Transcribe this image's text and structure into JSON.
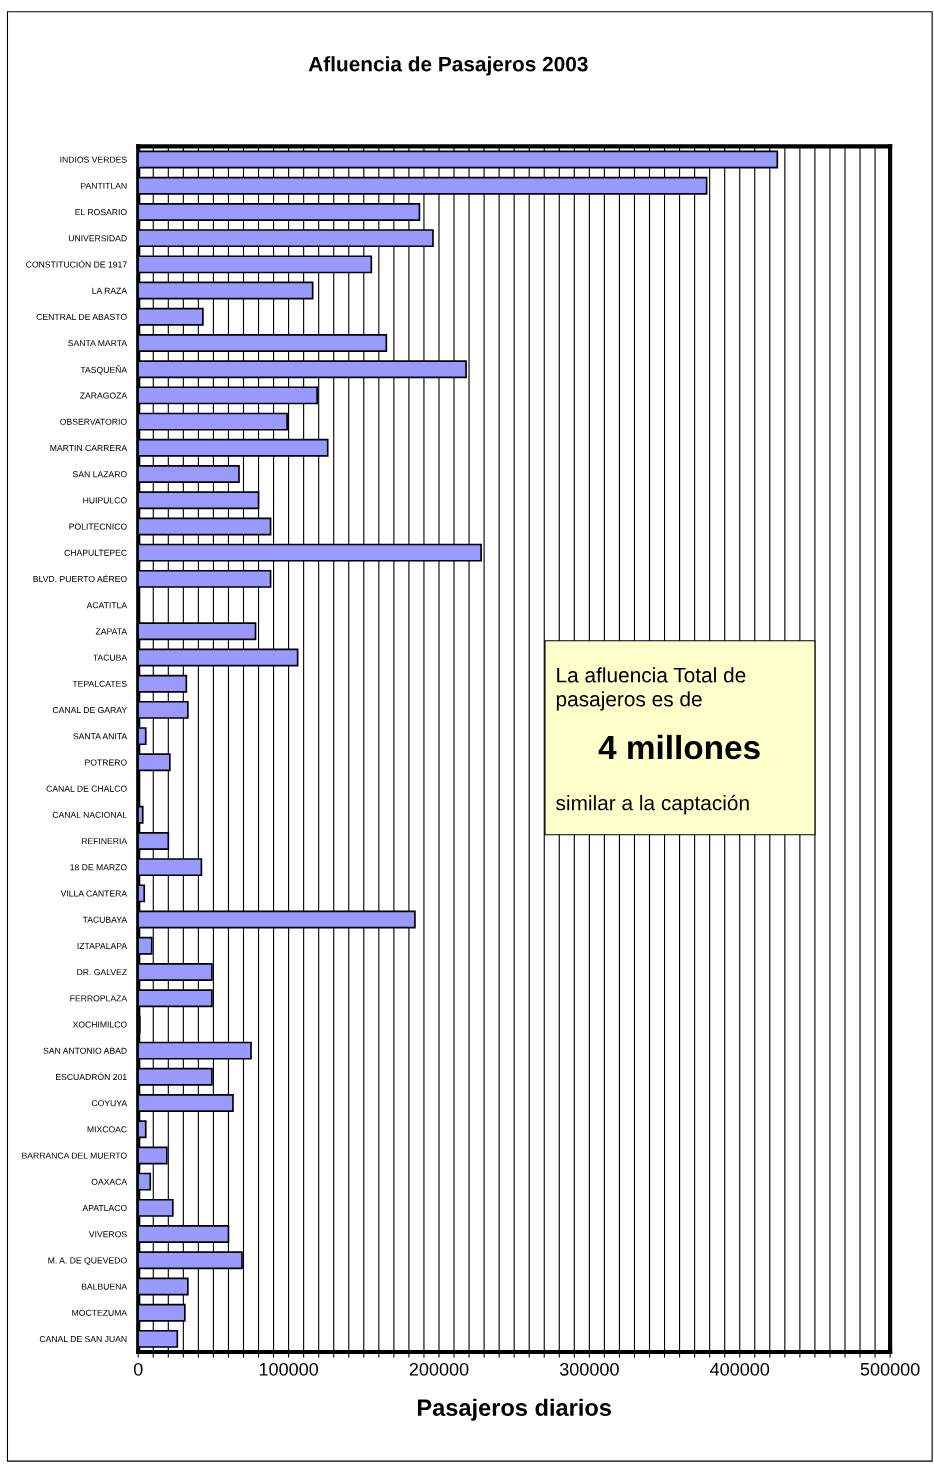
{
  "chart_data": {
    "type": "bar",
    "orientation": "horizontal",
    "title": "Afluencia de Pasajeros 2003",
    "xlabel": "Pasajeros diarios",
    "categories": [
      "INDIOS VERDES",
      "PANTITLAN",
      "EL ROSARIO",
      "UNIVERSIDAD",
      "CONSTITUCIÓN DE 1917",
      "LA RAZA",
      "CENTRAL DE ABASTO",
      "SANTA MARTA",
      "TASQUEÑA",
      "ZARAGOZA",
      "OBSERVATORIO",
      "MARTIN CARRERA",
      "SAN LAZARO",
      "HUIPULCO",
      "POLITECNICO",
      "CHAPULTEPEC",
      "BLVD. PUERTO AÉREO",
      "ACATITLA",
      "ZAPATA",
      "TACUBA",
      "TEPALCATES",
      "CANAL DE GARAY",
      "SANTA ANITA",
      "POTRERO",
      "CANAL DE CHALCO",
      "CANAL NACIONAL",
      "REFINERIA",
      "18 DE MARZO",
      "VILLA CANTERA",
      "TACUBAYA",
      "IZTAPALAPA",
      "DR. GALVEZ",
      "FERROPLAZA",
      "XOCHIMILCO",
      "SAN ANTONIO ABAD",
      "ESCUADRÓN 201",
      "COYUYA",
      "MIXCOAC",
      "BARRANCA DEL MUERTO",
      "OAXACA",
      "APATLACO",
      "VIVEROS",
      "M. A. DE QUEVEDO",
      "BALBUENA",
      "MOCTEZUMA",
      "CANAL DE SAN JUAN"
    ],
    "values": [
      425000,
      378000,
      187000,
      196000,
      155000,
      116000,
      43000,
      165000,
      218000,
      119000,
      99000,
      126000,
      67000,
      80000,
      88000,
      228000,
      88000,
      0,
      78000,
      106000,
      32000,
      33000,
      5000,
      21000,
      0,
      3000,
      20000,
      42000,
      4000,
      184000,
      9000,
      49000,
      49000,
      1000,
      75000,
      49000,
      63000,
      5000,
      19000,
      8000,
      23000,
      60000,
      69000,
      33000,
      31000,
      26000
    ],
    "color": "#9999ff",
    "xlim": [
      0,
      500000
    ],
    "xticks": [
      0,
      {
        "value": 10000,
        "label": null
      },
      {
        "value": 20000,
        "label": null
      },
      {
        "value": 30000,
        "label": null
      },
      {
        "value": 40000,
        "label": null
      },
      {
        "value": 50000,
        "label": null
      },
      {
        "value": 60000,
        "label": null
      },
      {
        "value": 70000,
        "label": null
      },
      {
        "value": 80000,
        "label": null
      },
      {
        "value": 90000,
        "label": null
      },
      100000,
      {
        "value": 110000,
        "label": null
      },
      {
        "value": 120000,
        "label": null
      },
      {
        "value": 130000,
        "label": null
      },
      {
        "value": 140000,
        "label": null
      },
      {
        "value": 150000,
        "label": null
      },
      {
        "value": 160000,
        "label": null
      },
      {
        "value": 170000,
        "label": null
      },
      {
        "value": 180000,
        "label": null
      },
      {
        "value": 190000,
        "label": null
      },
      200000,
      {
        "value": 210000,
        "label": null
      },
      {
        "value": 220000,
        "label": null
      },
      {
        "value": 230000,
        "label": null
      },
      {
        "value": 240000,
        "label": null
      },
      {
        "value": 250000,
        "label": null
      },
      {
        "value": 260000,
        "label": null
      },
      {
        "value": 270000,
        "label": null
      },
      {
        "value": 280000,
        "label": null
      },
      {
        "value": 290000,
        "label": null
      },
      300000,
      {
        "value": 310000,
        "label": null
      },
      {
        "value": 320000,
        "label": null
      },
      {
        "value": 330000,
        "label": null
      },
      {
        "value": 340000,
        "label": null
      },
      {
        "value": 350000,
        "label": null
      },
      {
        "value": 360000,
        "label": null
      },
      {
        "value": 370000,
        "label": null
      },
      {
        "value": 380000,
        "label": null
      },
      {
        "value": 390000,
        "label": null
      },
      400000,
      {
        "value": 410000,
        "label": null
      },
      {
        "value": 420000,
        "label": null
      },
      {
        "value": 430000,
        "label": null
      },
      {
        "value": 440000,
        "label": null
      },
      {
        "value": 450000,
        "label": null
      },
      {
        "value": 460000,
        "label": null
      },
      {
        "value": 470000,
        "label": null
      },
      {
        "value": 480000,
        "label": null
      },
      {
        "value": 490000,
        "label": null
      },
      500000
    ],
    "grid": "x",
    "annotations": [
      "La afluencia Total de pasajeros es de",
      "4 millones",
      "similar a la captación"
    ]
  }
}
